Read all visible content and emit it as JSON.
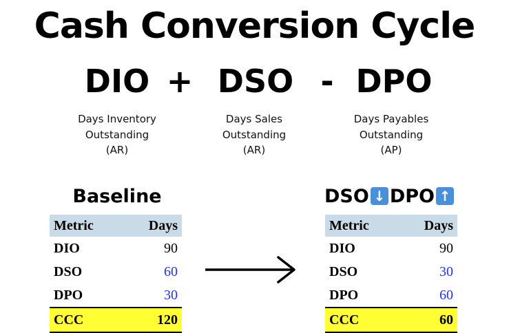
{
  "title": "Cash Conversion Cycle",
  "formula": {
    "term1": "DIO",
    "op1": "+",
    "term2": "DSO",
    "op2": "-",
    "term3": "DPO"
  },
  "definitions": {
    "dio": {
      "line1": "Days Inventory",
      "line2": "Outstanding",
      "line3": "(AR)"
    },
    "dso": {
      "line1": "Days Sales",
      "line2": "Outstanding",
      "line3": "(AR)"
    },
    "dpo": {
      "line1": "Days Payables",
      "line2": "Outstanding",
      "line3": "(AP)"
    }
  },
  "baseline": {
    "title": "Baseline",
    "header": {
      "metric": "Metric",
      "days": "Days"
    },
    "rows": [
      {
        "metric": "DIO",
        "days": "90"
      },
      {
        "metric": "DSO",
        "days": "60"
      },
      {
        "metric": "DPO",
        "days": "30"
      }
    ],
    "total": {
      "metric": "CCC",
      "days": "120"
    }
  },
  "scenario": {
    "title_part1": "DSO",
    "title_icon1": "down-arrow-icon",
    "title_part2": "DPO",
    "title_icon2": "up-arrow-icon",
    "header": {
      "metric": "Metric",
      "days": "Days"
    },
    "rows": [
      {
        "metric": "DIO",
        "days": "90"
      },
      {
        "metric": "DSO",
        "days": "30"
      },
      {
        "metric": "DPO",
        "days": "60"
      }
    ],
    "total": {
      "metric": "CCC",
      "days": "60"
    }
  },
  "colors": {
    "header_bg": "#c9dbe6",
    "highlight": "#ffff33",
    "changed_value": "#2233ee",
    "emoji_bg": "#4a8fd9"
  }
}
